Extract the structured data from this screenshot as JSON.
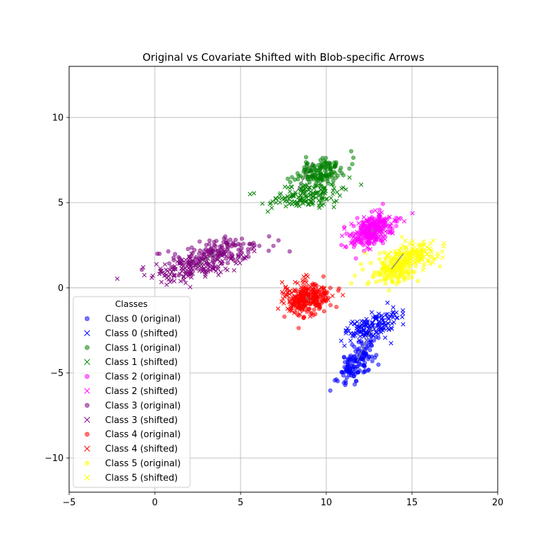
{
  "chart_data": {
    "type": "scatter",
    "title": "Original vs Covariate Shifted with Blob-specific Arrows",
    "xlabel": "",
    "ylabel": "",
    "xlim": [
      -5,
      20
    ],
    "ylim": [
      -12,
      13
    ],
    "xticks": [
      -5,
      0,
      5,
      10,
      15,
      20
    ],
    "yticks": [
      -10,
      -5,
      0,
      5,
      10
    ],
    "grid": true,
    "legend": {
      "title": "Classes",
      "placement": "lower-left"
    },
    "classes": [
      {
        "id": 0,
        "color": "#0000ff",
        "original_label": "Class 0 (original)",
        "shifted_label": "Class 0 (shifted)",
        "original": {
          "center": [
            11.8,
            -4.3
          ],
          "spread": [
            0.55,
            0.65
          ],
          "corr": 0.6,
          "n": 150,
          "seed": 11
        },
        "shifted": {
          "center": [
            12.7,
            -2.3
          ],
          "spread": [
            0.75,
            0.45
          ],
          "corr": 0.55,
          "n": 150,
          "seed": 12
        },
        "arrow": {
          "from": [
            11.8,
            -4.3
          ],
          "to": [
            12.7,
            -2.3
          ]
        }
      },
      {
        "id": 1,
        "color": "#008000",
        "original_label": "Class 1 (original)",
        "shifted_label": "Class 1 (shifted)",
        "original": {
          "center": [
            9.6,
            6.8
          ],
          "spread": [
            0.75,
            0.4
          ],
          "corr": 0.3,
          "n": 150,
          "seed": 21
        },
        "shifted": {
          "center": [
            8.9,
            5.4
          ],
          "spread": [
            1.0,
            0.35
          ],
          "corr": 0.3,
          "n": 150,
          "seed": 22
        },
        "arrow": {
          "from": [
            9.2,
            7.4
          ],
          "to": [
            8.3,
            5.7
          ]
        }
      },
      {
        "id": 2,
        "color": "#ff00ff",
        "original_label": "Class 2 (original)",
        "shifted_label": "Class 2 (shifted)",
        "original": {
          "center": [
            12.6,
            3.3
          ],
          "spread": [
            0.6,
            0.5
          ],
          "corr": 0.4,
          "n": 150,
          "seed": 31
        },
        "shifted": {
          "center": [
            12.8,
            3.4
          ],
          "spread": [
            0.6,
            0.45
          ],
          "corr": 0.4,
          "n": 150,
          "seed": 32
        },
        "arrow": {
          "from": [
            12.6,
            3.3
          ],
          "to": [
            12.8,
            3.4
          ]
        }
      },
      {
        "id": 3,
        "color": "#800080",
        "original_label": "Class 3 (original)",
        "shifted_label": "Class 3 (shifted)",
        "original": {
          "center": [
            3.6,
            2.1
          ],
          "spread": [
            1.3,
            0.45
          ],
          "corr": 0.5,
          "n": 150,
          "seed": 41
        },
        "shifted": {
          "center": [
            2.4,
            1.2
          ],
          "spread": [
            1.4,
            0.45
          ],
          "corr": 0.6,
          "n": 150,
          "seed": 42
        },
        "arrow": {
          "from": [
            3.6,
            2.1
          ],
          "to": [
            2.4,
            1.2
          ]
        }
      },
      {
        "id": 4,
        "color": "#ff0000",
        "original_label": "Class 4 (original)",
        "shifted_label": "Class 4 (shifted)",
        "original": {
          "center": [
            9.0,
            -0.8
          ],
          "spread": [
            0.6,
            0.45
          ],
          "corr": 0.2,
          "n": 150,
          "seed": 51
        },
        "shifted": {
          "center": [
            8.8,
            -0.5
          ],
          "spread": [
            0.65,
            0.4
          ],
          "corr": 0.2,
          "n": 150,
          "seed": 52
        },
        "arrow": {
          "from": [
            9.0,
            -0.8
          ],
          "to": [
            8.8,
            -0.5
          ]
        }
      },
      {
        "id": 5,
        "color": "#ffff00",
        "original_label": "Class 5 (original)",
        "shifted_label": "Class 5 (shifted)",
        "original": {
          "center": [
            14.0,
            1.1
          ],
          "spread": [
            0.75,
            0.5
          ],
          "corr": 0.4,
          "n": 150,
          "seed": 61
        },
        "shifted": {
          "center": [
            15.0,
            1.8
          ],
          "spread": [
            0.9,
            0.45
          ],
          "corr": 0.35,
          "n": 150,
          "seed": 62
        },
        "arrow": {
          "from": [
            13.8,
            1.1
          ],
          "to": [
            14.5,
            2.0
          ]
        }
      }
    ]
  }
}
